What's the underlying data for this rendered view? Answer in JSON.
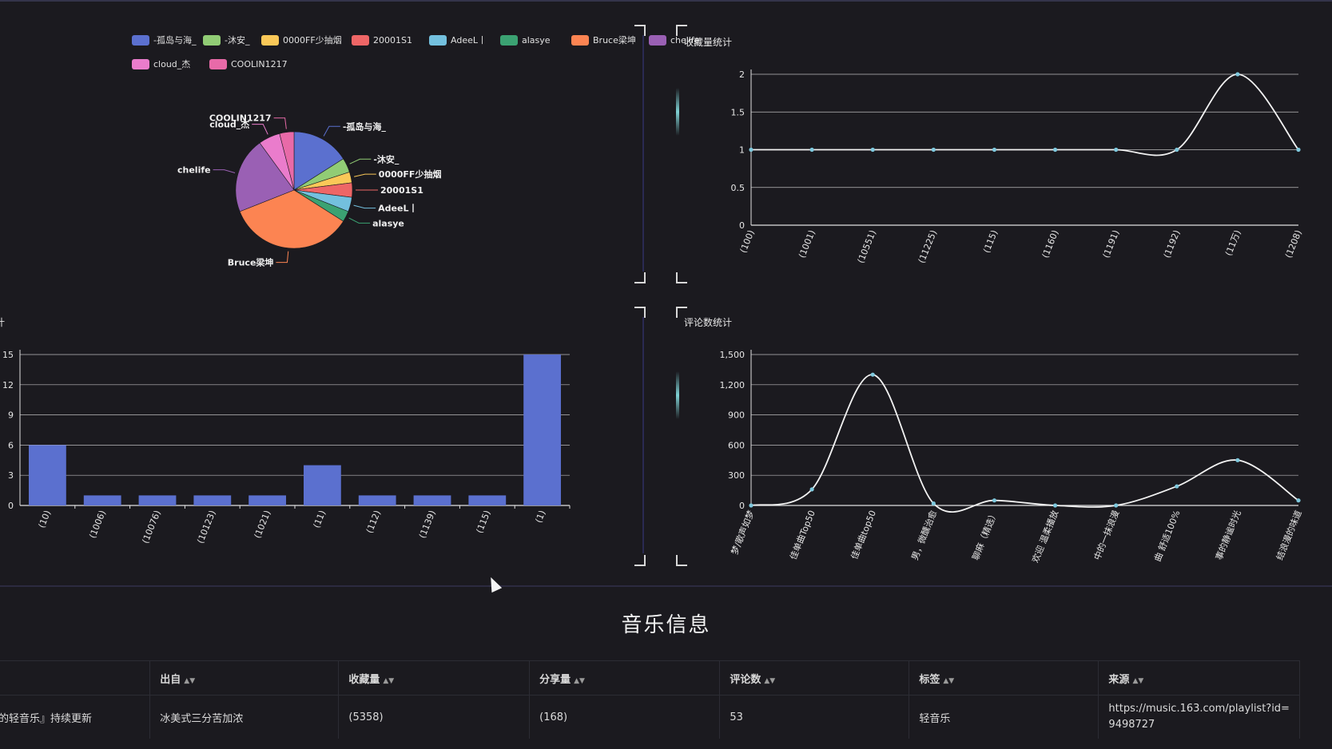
{
  "colors": {
    "background": "#1b1a1f",
    "bar": "#5b70cf",
    "line": "#f2f2f2",
    "point": "#7ec8dd",
    "grid": "#d9d9d9",
    "accent": "#7fd1d4",
    "pie": [
      "#5b70cf",
      "#91cc75",
      "#fac858",
      "#ee6666",
      "#73c0de",
      "#3ba272",
      "#fc8452",
      "#9a60b4",
      "#ea7ccc",
      "#e86aa8"
    ]
  },
  "pie_panel": {
    "legend": [
      "-孤岛与海_",
      "-沐安_",
      "0000FF少抽烟",
      "20001S1",
      "AdeeL丨",
      "alasye",
      "Bruce梁坤",
      "chelife",
      "cloud_杰",
      "COOLIN1217"
    ],
    "chart_data": {
      "type": "pie",
      "labels": [
        "-孤岛与海_",
        "-沐安_",
        "0000FF少抽烟",
        "20001S1",
        "AdeeL丨",
        "alasye",
        "Bruce梁坤",
        "chelife",
        "cloud_杰",
        "COOLIN1217"
      ],
      "values": [
        16,
        4,
        3,
        4,
        4,
        3,
        35,
        21,
        6,
        4
      ]
    }
  },
  "favorites_panel": {
    "title": "收藏量统计",
    "chart_data": {
      "type": "line",
      "categories": [
        "(100)",
        "(1001)",
        "(10551)",
        "(11225)",
        "(115)",
        "(1160)",
        "(1191)",
        "(1192)",
        "(11万)",
        "(1208)"
      ],
      "values": [
        1,
        1,
        1,
        1,
        1,
        1,
        1,
        1,
        2,
        1
      ],
      "yticks": [
        "0",
        "0.5",
        "1",
        "1.5",
        "2"
      ],
      "ylim": [
        0,
        2
      ]
    }
  },
  "bar_panel": {
    "title": "计",
    "chart_data": {
      "type": "bar",
      "categories": [
        "(10)",
        "(1006)",
        "(10076)",
        "(10123)",
        "(1021)",
        "(11)",
        "(112)",
        "(1139)",
        "(115)",
        "(1)"
      ],
      "values": [
        6,
        1,
        1,
        1,
        1,
        4,
        1,
        1,
        1,
        15
      ],
      "yticks": [
        "0",
        "3",
        "6",
        "9",
        "12",
        "15"
      ],
      "ylim": [
        0,
        15
      ]
    }
  },
  "comments_panel": {
    "title": "评论数统计",
    "chart_data": {
      "type": "line",
      "categories": [
        "梦/歌声如梦",
        "佳单曲Top50",
        "佳单曲top50",
        "男，微醺治愈",
        "聊麻（精选）",
        "欢迎 温柔播放",
        "中的一抹浪漫",
        "曲 舒适100%",
        "事的静谧时光",
        "结浪漫的味道"
      ],
      "values": [
        0,
        160,
        1300,
        20,
        50,
        0,
        0,
        190,
        450,
        50
      ],
      "yticks": [
        "0",
        "300",
        "600",
        "900",
        "1,200",
        "1,500"
      ],
      "ylim": [
        0,
        1500
      ]
    }
  },
  "music_section": {
    "title": "音乐信息",
    "columns": [
      "",
      "出自",
      "收藏量",
      "分享量",
      "评论数",
      "标签",
      "来源"
    ],
    "sort_glyph": "▲▼",
    "rows": [
      {
        "name": "喜欢的轻音乐』持续更新",
        "author": "冰美式三分苦加浓",
        "favorites": "(5358)",
        "shares": "(168)",
        "comments": "53",
        "tag": "轻音乐",
        "source_line1": "https://music.163.com/playlist?id=",
        "source_line2": "9498727"
      }
    ]
  }
}
